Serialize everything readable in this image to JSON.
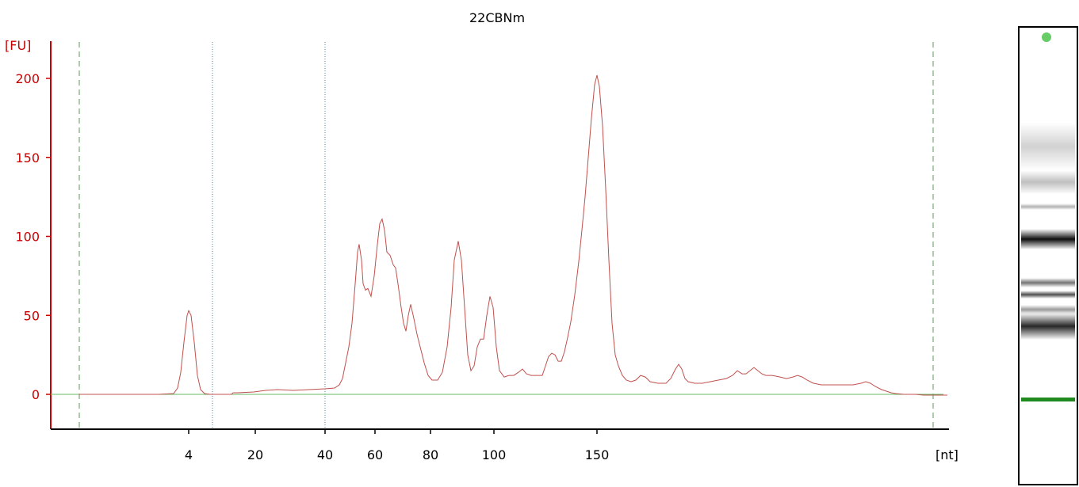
{
  "chart_data": {
    "type": "line",
    "title": "22CBNm",
    "ylabel": "[FU]",
    "xlabel": "[nt]",
    "ylim": [
      -20,
      215
    ],
    "y_ticks": [
      "0",
      "50",
      "100",
      "150",
      "200"
    ],
    "x_ticks": [
      "4",
      "20",
      "40",
      "60",
      "80",
      "100",
      "150"
    ],
    "grid": false,
    "colors": {
      "trace": "#c0504d",
      "axis": "#cc0000",
      "baseline": "#66bb66",
      "marker_line": "#5a9a5a",
      "dotted_line": "#4a8aa8"
    },
    "series": [
      {
        "values": [
          [
            100,
            0
          ],
          [
            120,
            0
          ],
          [
            140,
            0
          ],
          [
            160,
            0
          ],
          [
            180,
            0
          ],
          [
            200,
            0
          ],
          [
            219,
            0.5
          ],
          [
            224,
            4
          ],
          [
            228,
            14
          ],
          [
            232,
            33
          ],
          [
            236,
            50
          ],
          [
            238,
            53
          ],
          [
            241,
            50
          ],
          [
            245,
            33
          ],
          [
            249,
            12
          ],
          [
            253,
            3
          ],
          [
            258,
            0.5
          ],
          [
            265,
            0
          ],
          [
            292,
            0
          ],
          [
            294,
            1
          ],
          [
            300,
            1
          ],
          [
            320,
            1.5
          ],
          [
            335,
            2.5
          ],
          [
            350,
            3
          ],
          [
            370,
            2.5
          ],
          [
            390,
            3
          ],
          [
            410,
            3.5
          ],
          [
            422,
            4
          ],
          [
            428,
            6
          ],
          [
            432,
            10
          ],
          [
            436,
            20
          ],
          [
            440,
            30
          ],
          [
            444,
            45
          ],
          [
            448,
            70
          ],
          [
            451,
            90
          ],
          [
            453,
            95
          ],
          [
            456,
            85
          ],
          [
            458,
            70
          ],
          [
            461,
            66
          ],
          [
            464,
            67
          ],
          [
            468,
            62
          ],
          [
            472,
            75
          ],
          [
            476,
            95
          ],
          [
            479,
            108
          ],
          [
            482,
            111
          ],
          [
            485,
            104
          ],
          [
            488,
            90
          ],
          [
            492,
            88
          ],
          [
            496,
            82
          ],
          [
            499,
            80
          ],
          [
            502,
            70
          ],
          [
            506,
            55
          ],
          [
            509,
            45
          ],
          [
            512,
            40
          ],
          [
            515,
            50
          ],
          [
            518,
            57
          ],
          [
            522,
            48
          ],
          [
            526,
            38
          ],
          [
            530,
            30
          ],
          [
            535,
            20
          ],
          [
            540,
            12
          ],
          [
            545,
            9
          ],
          [
            552,
            9
          ],
          [
            558,
            14
          ],
          [
            564,
            30
          ],
          [
            569,
            55
          ],
          [
            573,
            85
          ],
          [
            578,
            97
          ],
          [
            582,
            85
          ],
          [
            586,
            55
          ],
          [
            590,
            25
          ],
          [
            594,
            15
          ],
          [
            598,
            18
          ],
          [
            602,
            30
          ],
          [
            606,
            35
          ],
          [
            610,
            35
          ],
          [
            614,
            50
          ],
          [
            618,
            62
          ],
          [
            622,
            55
          ],
          [
            626,
            30
          ],
          [
            630,
            15
          ],
          [
            636,
            11
          ],
          [
            642,
            12
          ],
          [
            648,
            12
          ],
          [
            654,
            14
          ],
          [
            659,
            16
          ],
          [
            664,
            13
          ],
          [
            670,
            12
          ],
          [
            678,
            12
          ],
          [
            684,
            12
          ],
          [
            688,
            18
          ],
          [
            692,
            24
          ],
          [
            696,
            26
          ],
          [
            700,
            25
          ],
          [
            704,
            21
          ],
          [
            708,
            21
          ],
          [
            712,
            27
          ],
          [
            716,
            36
          ],
          [
            720,
            46
          ],
          [
            725,
            63
          ],
          [
            730,
            84
          ],
          [
            734,
            104
          ],
          [
            738,
            125
          ],
          [
            742,
            150
          ],
          [
            746,
            175
          ],
          [
            750,
            196
          ],
          [
            753,
            202
          ],
          [
            756,
            195
          ],
          [
            760,
            170
          ],
          [
            764,
            130
          ],
          [
            768,
            85
          ],
          [
            772,
            45
          ],
          [
            776,
            25
          ],
          [
            780,
            18
          ],
          [
            785,
            12
          ],
          [
            790,
            9
          ],
          [
            796,
            8
          ],
          [
            802,
            9
          ],
          [
            808,
            12
          ],
          [
            814,
            11
          ],
          [
            820,
            8
          ],
          [
            830,
            7
          ],
          [
            840,
            7
          ],
          [
            846,
            10
          ],
          [
            852,
            16
          ],
          [
            856,
            19
          ],
          [
            860,
            16
          ],
          [
            864,
            10
          ],
          [
            868,
            8
          ],
          [
            876,
            7
          ],
          [
            886,
            7
          ],
          [
            896,
            8
          ],
          [
            906,
            9
          ],
          [
            916,
            10
          ],
          [
            924,
            12
          ],
          [
            930,
            15
          ],
          [
            936,
            13
          ],
          [
            941,
            13
          ],
          [
            946,
            15
          ],
          [
            951,
            17
          ],
          [
            956,
            15
          ],
          [
            961,
            13
          ],
          [
            966,
            12
          ],
          [
            974,
            12
          ],
          [
            984,
            11
          ],
          [
            992,
            10
          ],
          [
            1000,
            11
          ],
          [
            1006,
            12
          ],
          [
            1012,
            11
          ],
          [
            1018,
            9
          ],
          [
            1026,
            7
          ],
          [
            1036,
            6
          ],
          [
            1046,
            6
          ],
          [
            1056,
            6
          ],
          [
            1066,
            6
          ],
          [
            1076,
            6
          ],
          [
            1086,
            7
          ],
          [
            1092,
            8
          ],
          [
            1098,
            7
          ],
          [
            1104,
            5
          ],
          [
            1112,
            3
          ],
          [
            1118,
            2
          ],
          [
            1124,
            1
          ],
          [
            1130,
            0.5
          ],
          [
            1140,
            0
          ],
          [
            1155,
            0
          ],
          [
            1165,
            -0.5
          ],
          [
            1175,
            -0.5
          ],
          [
            1185,
            -0.5
          ],
          [
            1195,
            -0.5
          ]
        ]
      }
    ],
    "gel_lane": {
      "bands": [
        {
          "label": "marker",
          "color": "#1f8a1f"
        },
        {
          "label": "ladder-top",
          "color": "#66cc66"
        }
      ]
    }
  }
}
